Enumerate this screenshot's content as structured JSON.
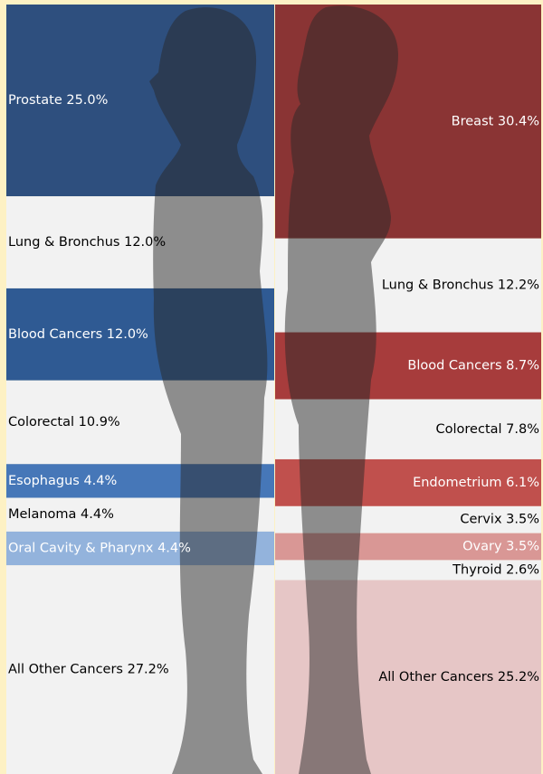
{
  "chart_data": [
    {
      "type": "stack",
      "categories": [
        "Prostate",
        "Lung & Bronchus",
        "Blood Cancers",
        "Colorectal",
        "Esophagus",
        "Melanoma",
        "Oral Cavity & Pharynx",
        "All Other Cancers"
      ],
      "values": [
        25.0,
        12.0,
        12.0,
        10.9,
        4.4,
        4.4,
        4.4,
        27.2
      ],
      "value_labels": [
        "25.0%",
        "12.0%",
        "12.0%",
        "10.9%",
        "4.4%",
        "4.4%",
        "4.4%",
        "27.2%"
      ],
      "colors": [
        "#2e4f7e",
        "#f2f2f2",
        "#2f5a93",
        "#f2f2f2",
        "#4677b8",
        "#f2f2f2",
        "#93b3dc",
        "#f2f2f2"
      ],
      "align": "left"
    },
    {
      "type": "stack",
      "categories": [
        "Breast",
        "Lung & Bronchus",
        "Blood Cancers",
        "Colorectal",
        "Endometrium",
        "Cervix",
        "Ovary",
        "Thyroid",
        "All Other Cancers"
      ],
      "values": [
        30.4,
        12.2,
        8.7,
        7.8,
        6.1,
        3.5,
        3.5,
        2.6,
        25.2
      ],
      "value_labels": [
        "30.4%",
        "12.2%",
        "8.7%",
        "7.8%",
        "6.1%",
        "3.5%",
        "3.5%",
        "2.6%",
        "25.2%"
      ],
      "colors": [
        "#8a3434",
        "#f2f2f2",
        "#a73c3c",
        "#f2f2f2",
        "#c0504d",
        "#f2f2f2",
        "#d99795",
        "#f2f2f2",
        "#e6c6c6"
      ],
      "align": "right"
    }
  ]
}
